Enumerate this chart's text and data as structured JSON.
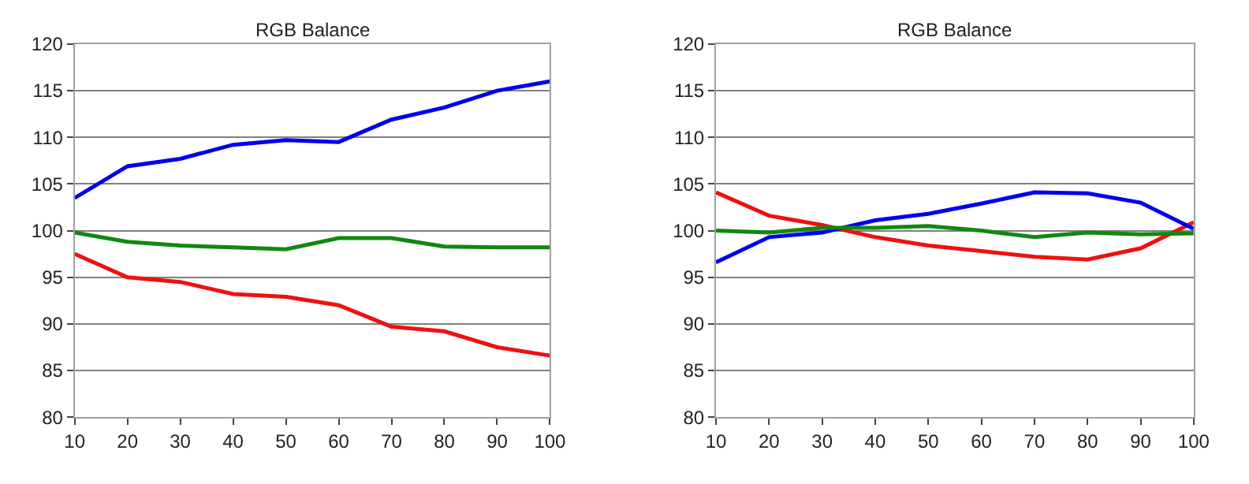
{
  "chart_data": [
    {
      "type": "line",
      "title": "RGB Balance",
      "x": [
        10,
        20,
        30,
        40,
        50,
        60,
        70,
        80,
        90,
        100
      ],
      "xlim": [
        10,
        100
      ],
      "xticks": [
        10,
        20,
        30,
        40,
        50,
        60,
        70,
        80,
        90,
        100
      ],
      "ylim": [
        80,
        120
      ],
      "yticks": [
        80,
        85,
        90,
        95,
        100,
        105,
        110,
        115,
        120
      ],
      "grid": "y",
      "series": [
        {
          "color": "#0000ee",
          "values": [
            103.5,
            106.9,
            107.7,
            109.2,
            109.7,
            109.5,
            111.9,
            113.2,
            115.0,
            116.0
          ]
        },
        {
          "color": "#118811",
          "values": [
            99.8,
            98.8,
            98.4,
            98.2,
            98.0,
            99.2,
            99.2,
            98.3,
            98.2,
            98.2
          ]
        },
        {
          "color": "#ee1111",
          "values": [
            97.5,
            95.0,
            94.5,
            93.2,
            92.9,
            92.0,
            89.7,
            89.2,
            87.5,
            86.6
          ]
        }
      ]
    },
    {
      "type": "line",
      "title": "RGB Balance",
      "x": [
        10,
        20,
        30,
        40,
        50,
        60,
        70,
        80,
        90,
        100
      ],
      "xlim": [
        10,
        100
      ],
      "xticks": [
        10,
        20,
        30,
        40,
        50,
        60,
        70,
        80,
        90,
        100
      ],
      "ylim": [
        80,
        120
      ],
      "yticks": [
        80,
        85,
        90,
        95,
        100,
        105,
        110,
        115,
        120
      ],
      "grid": "y",
      "series": [
        {
          "color": "#ee1111",
          "values": [
            104.1,
            101.6,
            100.6,
            99.3,
            98.4,
            97.8,
            97.2,
            96.9,
            98.1,
            100.9
          ]
        },
        {
          "color": "#0000ee",
          "values": [
            96.6,
            99.3,
            99.8,
            101.1,
            101.8,
            102.9,
            104.1,
            104.0,
            103.0,
            100.2
          ]
        },
        {
          "color": "#118811",
          "values": [
            100.0,
            99.8,
            100.3,
            100.3,
            100.5,
            100.0,
            99.3,
            99.8,
            99.6,
            99.7
          ]
        }
      ]
    }
  ]
}
